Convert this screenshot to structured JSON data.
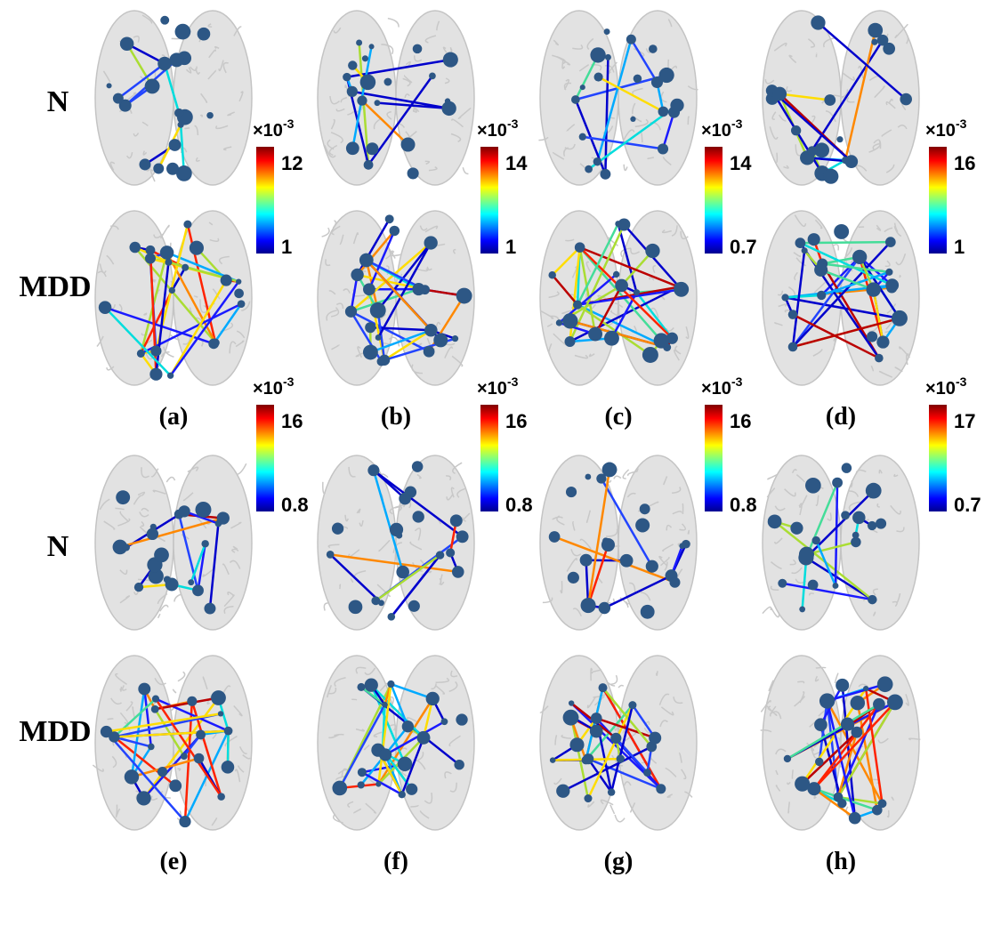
{
  "row_labels": [
    "N",
    "MDD"
  ],
  "colorbar_scale": {
    "base": "×10",
    "exponent": "-3"
  },
  "panels": [
    {
      "label": "(a)",
      "colorbar": {
        "max": 12,
        "min": 1
      }
    },
    {
      "label": "(b)",
      "colorbar": {
        "max": 14,
        "min": 1
      }
    },
    {
      "label": "(c)",
      "colorbar": {
        "max": 14,
        "min": 0.7
      }
    },
    {
      "label": "(d)",
      "colorbar": {
        "max": 16,
        "min": 1
      }
    },
    {
      "label": "(e)",
      "colorbar": {
        "max": 16,
        "min": 0.8
      }
    },
    {
      "label": "(f)",
      "colorbar": {
        "max": 16,
        "min": 0.8
      }
    },
    {
      "label": "(g)",
      "colorbar": {
        "max": 16,
        "min": 0.8
      }
    },
    {
      "label": "(h)",
      "colorbar": {
        "max": 17,
        "min": 0.7
      }
    }
  ]
}
